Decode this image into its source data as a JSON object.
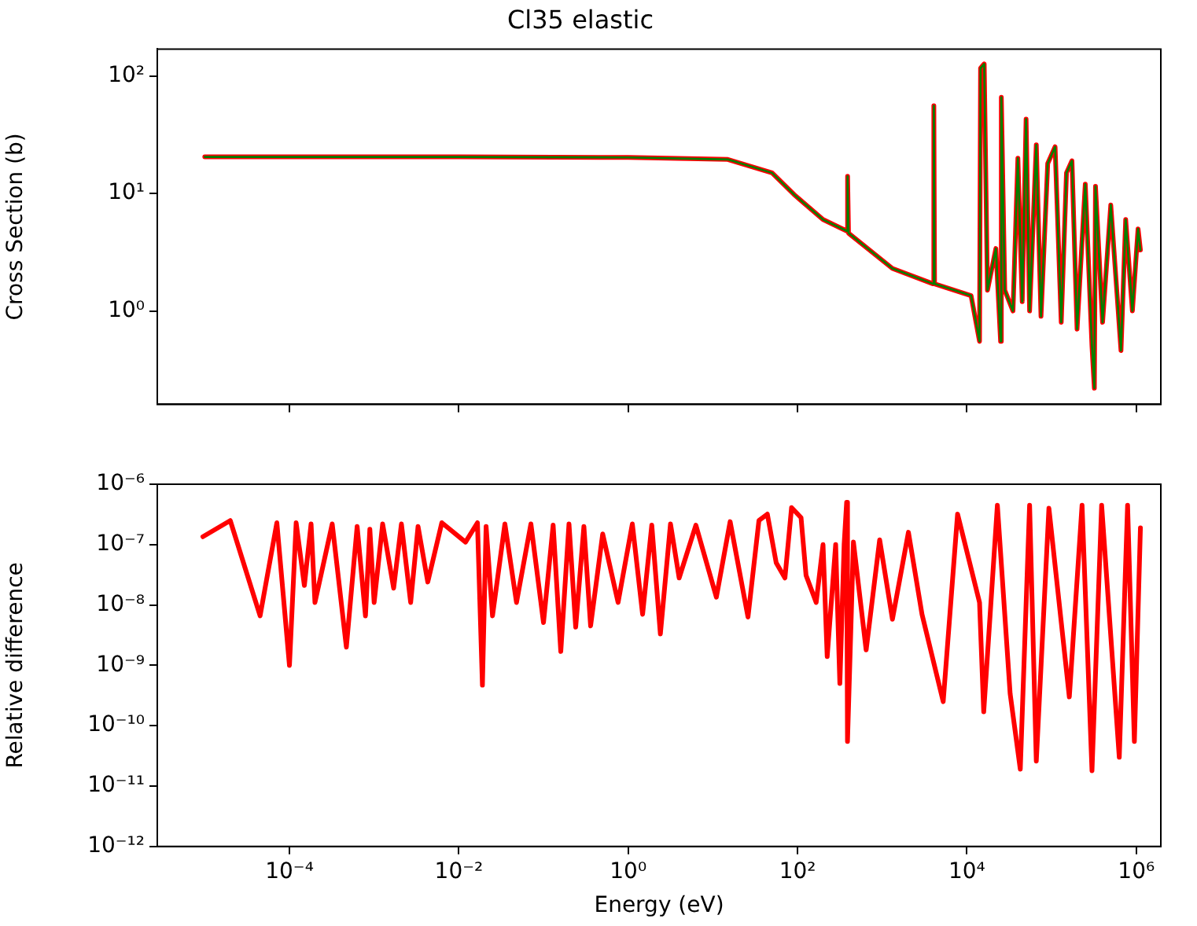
{
  "chart_data": [
    {
      "type": "line",
      "title": "Cl35 elastic",
      "ylabel": "Cross Section (b)",
      "log": "xy",
      "tick_labels": "y",
      "legend": false,
      "xlim": [
        2.75e-06,
        1950000.0
      ],
      "xticks": [
        {
          "value": 0.0001,
          "label": null
        },
        {
          "value": 0.01,
          "label": null
        },
        {
          "value": 1,
          "label": null
        },
        {
          "value": 100,
          "label": null
        },
        {
          "value": 10000,
          "label": null
        },
        {
          "value": 1000000,
          "label": null
        }
      ],
      "ylim": [
        0.16,
        170
      ],
      "yticks": [
        {
          "value": 1,
          "label": "10⁰"
        },
        {
          "value": 10,
          "label": "10¹"
        },
        {
          "value": 100,
          "label": "10²"
        }
      ],
      "x": [
        1e-05,
        0.01,
        1,
        15,
        50,
        91,
        200,
        380,
        390,
        400,
        1320,
        4000,
        4070,
        4150,
        11200,
        14100,
        14500,
        16000,
        17500,
        22000,
        25000,
        25500,
        28000,
        35000,
        40000,
        45000,
        50000,
        55000,
        66000,
        75000,
        90000,
        110000,
        130000,
        150000,
        174000,
        200000,
        250000,
        300000,
        320000,
        330000,
        400000,
        500000,
        660000,
        750000,
        900000,
        1050000,
        1120000
      ],
      "series": [
        {
          "color": "#ff0000",
          "values": [
            20.5,
            20.5,
            20.3,
            19.5,
            15,
            9.8,
            6,
            4.8,
            14,
            4.6,
            2.3,
            1.7,
            56,
            1.7,
            1.35,
            0.55,
            117,
            127,
            1.5,
            3.4,
            0.55,
            66,
            1.5,
            1.0,
            20,
            1.2,
            43,
            1.0,
            26,
            0.9,
            18,
            25,
            0.8,
            15,
            19,
            0.7,
            12,
            0.5,
            0.22,
            11.5,
            0.8,
            8,
            0.46,
            6,
            1.0,
            5,
            3.3
          ]
        },
        {
          "color": "#008000",
          "values": [
            20.5,
            20.5,
            20.3,
            19.5,
            15,
            9.8,
            6,
            4.8,
            14,
            4.6,
            2.3,
            1.7,
            56,
            1.7,
            1.35,
            0.55,
            117,
            127,
            1.5,
            3.4,
            0.55,
            66,
            1.5,
            1.0,
            20,
            1.2,
            43,
            1.0,
            26,
            0.9,
            18,
            25,
            0.8,
            15,
            19,
            0.7,
            12,
            0.5,
            0.22,
            11.5,
            0.8,
            8,
            0.46,
            6,
            1.0,
            5,
            3.3
          ]
        }
      ]
    },
    {
      "type": "line",
      "xlabel": "Energy (eV)",
      "ylabel": "Relative difference",
      "log": "xy",
      "legend": false,
      "xlim": [
        2.75e-06,
        1950000.0
      ],
      "xticks": [
        {
          "value": 0.0001,
          "label": "10⁻⁴"
        },
        {
          "value": 0.01,
          "label": "10⁻²"
        },
        {
          "value": 1,
          "label": "10⁰"
        },
        {
          "value": 100,
          "label": "10²"
        },
        {
          "value": 10000,
          "label": "10⁴"
        },
        {
          "value": 1000000,
          "label": "10⁶"
        }
      ],
      "ylim": [
        1e-12,
        1e-06
      ],
      "yticks": [
        {
          "value": 1e-12,
          "label": "10⁻¹²"
        },
        {
          "value": 1e-11,
          "label": "10⁻¹¹"
        },
        {
          "value": 1e-10,
          "label": "10⁻¹⁰"
        },
        {
          "value": 1e-09,
          "label": "10⁻⁹"
        },
        {
          "value": 1e-08,
          "label": "10⁻⁸"
        },
        {
          "value": 1e-07,
          "label": "10⁻⁷"
        },
        {
          "value": 1e-06,
          "label": "10⁻⁶"
        }
      ],
      "x": [
        9.5e-06,
        2e-05,
        4.5e-05,
        7.1e-05,
        0.0001,
        0.00012,
        0.00015,
        0.00018,
        0.0002,
        0.00032,
        0.00047,
        0.00063,
        0.00079,
        0.00089,
        0.001,
        0.00126,
        0.0017,
        0.0021,
        0.0027,
        0.0033,
        0.0043,
        0.0063,
        0.012,
        0.0166,
        0.019,
        0.021,
        0.025,
        0.035,
        0.048,
        0.071,
        0.1,
        0.13,
        0.16,
        0.2,
        0.24,
        0.3,
        0.36,
        0.5,
        0.76,
        1.12,
        1.48,
        1.9,
        2.4,
        3.16,
        4.0,
        6.3,
        11,
        16,
        26,
        35,
        44,
        56,
        71,
        85,
        110,
        126,
        166,
        200,
        224,
        282,
        316,
        355,
        380,
        389,
        457,
        646,
        933,
        1320,
        2040,
        2950,
        5250,
        7760,
        14100,
        15800,
        22900,
        32400,
        42700,
        55000,
        66000,
        93000,
        162000,
        229000,
        300000,
        390000,
        630000,
        790000,
        950000,
        1120000
      ],
      "series": [
        {
          "color": "#ff0000",
          "values": [
            1.35e-07,
            2.5e-07,
            6.6e-09,
            2.3e-07,
            1e-09,
            2.3e-07,
            2.1e-08,
            2.2e-07,
            1.1e-08,
            2.2e-07,
            2e-09,
            2e-07,
            6.6e-09,
            1.8e-07,
            1.1e-08,
            2.2e-07,
            1.9e-08,
            2.2e-07,
            1.1e-08,
            2e-07,
            2.4e-08,
            2.3e-07,
            1.1e-07,
            2.3e-07,
            4.7e-10,
            2e-07,
            6.6e-09,
            2.2e-07,
            1.1e-08,
            2.2e-07,
            5.1e-09,
            2.1e-07,
            1.7e-09,
            2.2e-07,
            4.3e-09,
            2e-07,
            4.5e-09,
            1.5e-07,
            1.1e-08,
            2.2e-07,
            7e-09,
            2.1e-07,
            3.3e-09,
            2.2e-07,
            2.8e-08,
            2.1e-07,
            1.35e-08,
            2.4e-07,
            6.3e-09,
            2.5e-07,
            3.2e-07,
            5e-08,
            2.8e-08,
            4.1e-07,
            2.8e-07,
            3.1e-08,
            1.1e-08,
            1e-07,
            1.4e-09,
            1e-07,
            5e-10,
            1e-07,
            5e-07,
            5.5e-11,
            1.1e-07,
            1.8e-09,
            1.2e-07,
            5.8e-09,
            1.6e-07,
            7e-09,
            2.5e-10,
            3.2e-07,
            1.1e-08,
            1.7e-10,
            4.5e-07,
            3.4e-10,
            1.9e-11,
            4.5e-07,
            2.6e-11,
            4e-07,
            3e-10,
            4.5e-07,
            1.8e-11,
            4.5e-07,
            3e-11,
            4.5e-07,
            5.5e-11,
            1.9e-07
          ]
        }
      ]
    }
  ]
}
